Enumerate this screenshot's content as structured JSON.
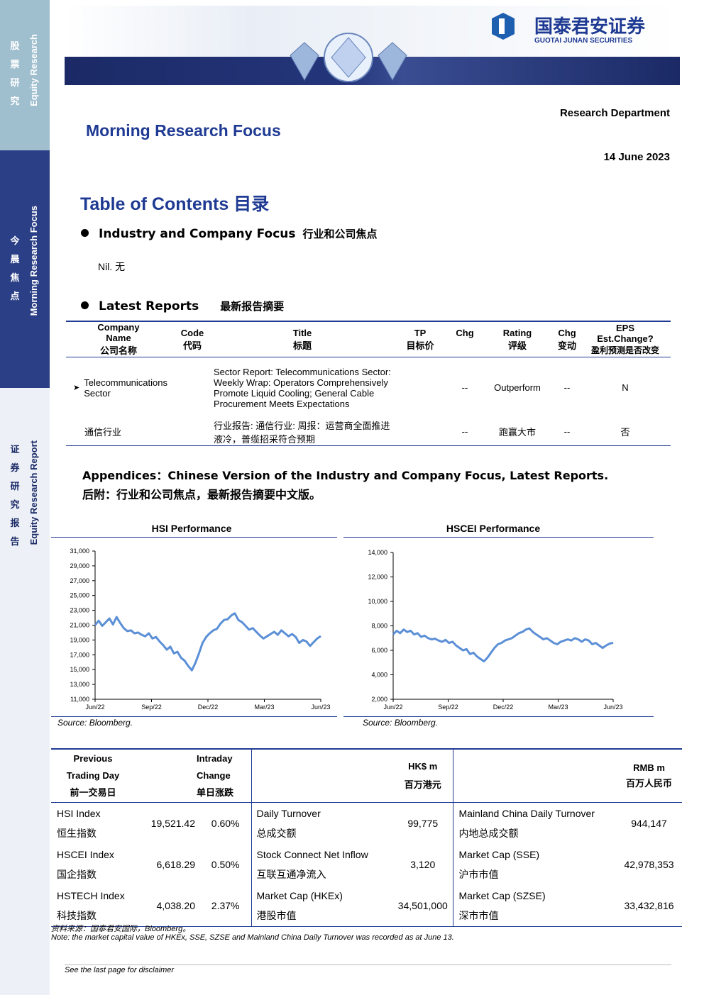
{
  "sidebar": {
    "sec1_cjk": [
      "股",
      "票",
      "研",
      "究"
    ],
    "sec1_en": "Equity Research",
    "sec2_cjk": [
      "今",
      "晨",
      "焦",
      "点"
    ],
    "sec2_en": "Morning Research Focus",
    "sec3_cjk": [
      "证",
      "券",
      "研",
      "究",
      "报",
      "告"
    ],
    "sec3_en": "Equity Research Report"
  },
  "header": {
    "logo_cn": "国泰君安证券",
    "logo_en": "GUOTAI JUNAN SECURITIES",
    "department": "Research Department",
    "title": "Morning Research Focus",
    "date": "14 June 2023",
    "colors": {
      "brand_blue": "#1f3a93",
      "banner_navy": "#1b2a66"
    }
  },
  "toc": {
    "title": "Table of Contents",
    "title_cn": "目录",
    "section1": "Industry and Company Focus",
    "section1_cn": "行业和公司焦点",
    "nil": "Nil.",
    "nil_cn": "无",
    "section2": "Latest Reports",
    "section2_cn": "最新报告摘要"
  },
  "reports": {
    "headers": {
      "company": [
        "Company",
        "Name",
        "公司名称"
      ],
      "code": [
        "Code",
        "代码"
      ],
      "title": [
        "Title",
        "标题"
      ],
      "tp": [
        "TP",
        "目标价"
      ],
      "chg": "Chg",
      "rating": [
        "Rating",
        "评级"
      ],
      "chg2": [
        "Chg",
        "变动"
      ],
      "eps": [
        "EPS",
        "Est.Change?",
        "盈利预测是否改变"
      ]
    },
    "row_en": {
      "company": "Telecommunications Sector",
      "title": "Sector Report: Telecommunications Sector: Weekly Wrap: Operators Comprehensively Promote Liquid Cooling; General Cable Procurement Meets Expectations",
      "chg": "--",
      "rating": "Outperform",
      "chg2": "--",
      "eps": "N"
    },
    "row_cn": {
      "company": "通信行业",
      "title": "行业报告: 通信行业: 周报：运营商全面推进液冷，普缆招采符合预期",
      "chg": "--",
      "rating": "跑赢大市",
      "chg2": "--",
      "eps": "否"
    }
  },
  "appendix": {
    "en": "Appendices：Chinese Version of the Industry and Company Focus, Latest Reports.",
    "cn": "后附：行业和公司焦点，最新报告摘要中文版。"
  },
  "chart_data": [
    {
      "type": "line",
      "title": "HSI Performance",
      "x_ticks": [
        "Jun/22",
        "Sep/22",
        "Dec/22",
        "Mar/23",
        "Jun/23"
      ],
      "y_ticks": [
        "31,000",
        "29,000",
        "27,000",
        "25,000",
        "23,000",
        "21,000",
        "19,000",
        "17,000",
        "15,000",
        "13,000",
        "11,000"
      ],
      "ylim": [
        11000,
        31000
      ],
      "values": [
        21000,
        21600,
        20900,
        21400,
        21900,
        21100,
        22100,
        21300,
        20600,
        20200,
        20300,
        19900,
        20000,
        19700,
        19500,
        19900,
        19200,
        19400,
        18800,
        18300,
        17700,
        18100,
        17200,
        17400,
        16600,
        16200,
        15500,
        14900,
        15900,
        17200,
        18600,
        19400,
        19900,
        20300,
        20500,
        21200,
        21700,
        21800,
        22300,
        22600,
        21700,
        21400,
        20900,
        20400,
        20600,
        20100,
        19600,
        19200,
        19500,
        19800,
        20100,
        19700,
        20300,
        19900,
        19500,
        19800,
        19400,
        18600,
        19000,
        18800,
        18200,
        18700,
        19200,
        19520
      ],
      "source": "Source: Bloomberg."
    },
    {
      "type": "line",
      "title": "HSCEI Performance",
      "x_ticks": [
        "Jun/22",
        "Sep/22",
        "Dec/22",
        "Mar/23",
        "Jun/23"
      ],
      "y_ticks": [
        "14,000",
        "12,000",
        "10,000",
        "8,000",
        "6,000",
        "4,000",
        "2,000"
      ],
      "ylim": [
        2000,
        14000
      ],
      "values": [
        7300,
        7600,
        7400,
        7700,
        7500,
        7600,
        7300,
        7400,
        7100,
        7200,
        7000,
        6900,
        6950,
        6800,
        6700,
        6850,
        6600,
        6700,
        6400,
        6200,
        6000,
        6100,
        5700,
        5800,
        5500,
        5300,
        5100,
        5400,
        5800,
        6200,
        6500,
        6600,
        6800,
        6900,
        7000,
        7200,
        7400,
        7500,
        7700,
        7800,
        7500,
        7300,
        7100,
        6900,
        7000,
        6800,
        6600,
        6500,
        6700,
        6800,
        6900,
        6800,
        7000,
        6900,
        6700,
        6900,
        6800,
        6500,
        6600,
        6400,
        6200,
        6400,
        6550,
        6620
      ],
      "source": "Source: Bloomberg."
    }
  ],
  "market": {
    "headers": {
      "prev": [
        "Previous",
        "Trading Day",
        "前一交易日"
      ],
      "intraday": [
        "Intraday",
        "Change",
        "单日涨跌"
      ],
      "hkd": [
        "HK$ m",
        "百万港元"
      ],
      "rmb": [
        "RMB m",
        "百万人民币"
      ]
    },
    "rows": [
      {
        "idx_en": "HSI Index",
        "idx_cn": "恒生指数",
        "prev": "19,521.42",
        "chg": "0.60%",
        "m_en": "Daily Turnover",
        "m_cn": "总成交额",
        "hk": "99,775",
        "r_en": "Mainland China Daily Turnover",
        "r_cn": "内地总成交额",
        "rmb": "944,147"
      },
      {
        "idx_en": "HSCEI Index",
        "idx_cn": "国企指数",
        "prev": "6,618.29",
        "chg": "0.50%",
        "m_en": "Stock Connect Net Inflow",
        "m_cn": "互联互通净流入",
        "hk": "3,120",
        "r_en": "Market Cap (SSE)",
        "r_cn": "沪市市值",
        "rmb": "42,978,353"
      },
      {
        "idx_en": "HSTECH Index",
        "idx_cn": "科技指数",
        "prev": "4,038.20",
        "chg": "2.37%",
        "m_en": "Market Cap (HKEx)",
        "m_cn": "港股市值",
        "hk": "34,501,000",
        "r_en": "Market Cap (SZSE)",
        "r_cn": "深市市值",
        "rmb": "33,432,816"
      }
    ],
    "source": "资料来源：国泰君安国际，Bloomberg。",
    "note": "Note: the market capital value of HKEx, SSE, SZSE and Mainland China Daily Turnover was recorded as at June 13."
  },
  "footer": {
    "disclaimer": "See the last page for disclaimer"
  }
}
